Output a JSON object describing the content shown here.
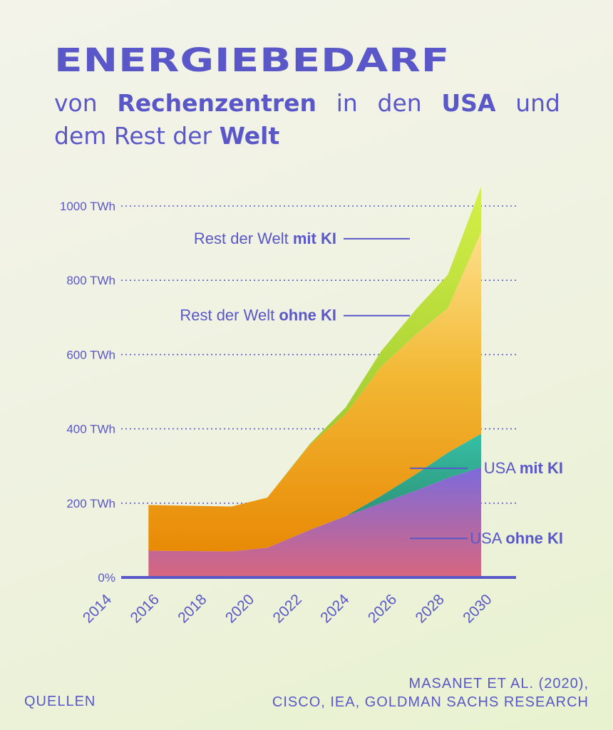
{
  "header": {
    "title": "ENERGIEBEDARF",
    "subtitle_line1": [
      "von",
      "Rechenzentren",
      "in",
      "den",
      "USA",
      "und"
    ],
    "subtitle_line1_bold": [
      false,
      true,
      false,
      false,
      true,
      false
    ],
    "subtitle_line2_a": "dem Rest der ",
    "subtitle_line2_b": "Welt"
  },
  "footer": {
    "quellen": "QUELLEN",
    "sources_line1": "MASANET ET AL. (2020),",
    "sources_line2": "CISCO, IEA, GOLDMAN SACHS RESEARCH"
  },
  "chart_data": {
    "type": "area",
    "stacked": true,
    "x_ticks": [
      "2014",
      "2016",
      "2018",
      "2020",
      "2022",
      "2024",
      "2026",
      "2028",
      "2030"
    ],
    "y_ticks": [
      {
        "value": 0,
        "label": "0%"
      },
      {
        "value": 200,
        "label": "200 TWh"
      },
      {
        "value": 400,
        "label": "400 TWh"
      },
      {
        "value": 600,
        "label": "600 TWh"
      },
      {
        "value": 800,
        "label": "800 TWh"
      },
      {
        "value": 1000,
        "label": "1000 TWh"
      }
    ],
    "ylim": [
      0,
      1050
    ],
    "xlim": [
      2013.5,
      2031.5
    ],
    "grid": "dotted horizontal",
    "x": [
      2016,
      2019.5,
      2021,
      2022.8,
      2024.3,
      2025.8,
      2027.3,
      2028.6,
      2030
    ],
    "series": [
      {
        "name": "USA ohne KI",
        "color": "#7b6bd8",
        "values": [
          72,
          70,
          80,
          128,
          165,
          200,
          235,
          268,
          297
        ]
      },
      {
        "name": "USA mit KI",
        "color": "#2faa8e",
        "values": [
          0,
          0,
          0,
          0,
          0,
          20,
          45,
          68,
          90
        ]
      },
      {
        "name": "Rest der Welt ohne KI",
        "color": "#f2b432",
        "values": [
          123,
          121,
          135,
          230,
          275,
          348,
          377,
          389,
          543
        ]
      },
      {
        "name": "Rest der Welt mit KI",
        "color": "#9ccc2c",
        "values": [
          0,
          0,
          0,
          2,
          18,
          42,
          68,
          90,
          122
        ]
      }
    ],
    "legend": [
      {
        "a": "Rest der Welt ",
        "b": "mit KI",
        "side": "left",
        "y": 912
      },
      {
        "a": "Rest der Welt ",
        "b": "ohne KI",
        "side": "left",
        "y": 705
      },
      {
        "a": "USA ",
        "b": "mit KI",
        "side": "right",
        "y": 294
      },
      {
        "a": "USA ",
        "b": "ohne KI",
        "side": "right",
        "y": 105
      }
    ]
  }
}
